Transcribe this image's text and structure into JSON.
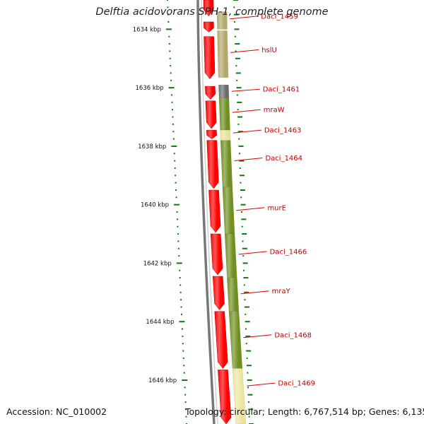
{
  "title": "Delftia acidovorans SPH-1, complete genome",
  "accession_text": "Accession: NC_010002",
  "topology_text": "Topology: circular; Length: 6,767,514 bp; Genes: 6,135",
  "colors": {
    "backbone": "#777777",
    "forward_cds": "#ff0000",
    "tick_marks": "#117711",
    "label_text": "#c00000",
    "leader_line": "#dd0000"
  },
  "chart_data": {
    "type": "linear_genome_map",
    "units": "kbp",
    "view_range_kbp": [
      1633.0,
      1647.5
    ],
    "scale_ticks": [
      {
        "position_kbp": 1634,
        "label": "1634 kbp"
      },
      {
        "position_kbp": 1636,
        "label": "1636 kbp"
      },
      {
        "position_kbp": 1638,
        "label": "1638 kbp"
      },
      {
        "position_kbp": 1640,
        "label": "1640 kbp"
      },
      {
        "position_kbp": 1642,
        "label": "1642 kbp"
      },
      {
        "position_kbp": 1644,
        "label": "1644 kbp"
      },
      {
        "position_kbp": 1646,
        "label": "1646 kbp"
      }
    ],
    "forward_cds": [
      {
        "start_kbp": 1633.0,
        "end_kbp": 1633.55
      },
      {
        "start_kbp": 1633.75,
        "end_kbp": 1634.1
      },
      {
        "start_kbp": 1634.25,
        "end_kbp": 1635.7
      },
      {
        "start_kbp": 1635.95,
        "end_kbp": 1636.4
      },
      {
        "start_kbp": 1636.45,
        "end_kbp": 1637.4
      },
      {
        "start_kbp": 1637.45,
        "end_kbp": 1637.75
      },
      {
        "start_kbp": 1637.8,
        "end_kbp": 1639.45
      },
      {
        "start_kbp": 1639.5,
        "end_kbp": 1640.95
      },
      {
        "start_kbp": 1641.0,
        "end_kbp": 1642.4
      },
      {
        "start_kbp": 1642.45,
        "end_kbp": 1643.6
      },
      {
        "start_kbp": 1643.65,
        "end_kbp": 1645.6
      },
      {
        "start_kbp": 1645.65,
        "end_kbp": 1647.5
      }
    ],
    "genes": [
      {
        "name": "Daci_1459",
        "start_kbp": 1633.4,
        "end_kbp": 1634.0,
        "color": "#b5a86a",
        "label_y_kbp": 1633.55
      },
      {
        "name": "hslU",
        "start_kbp": 1634.05,
        "end_kbp": 1635.65,
        "color": "#b5a86a",
        "label_y_kbp": 1634.7
      },
      {
        "name": "Daci_1461",
        "start_kbp": 1635.9,
        "end_kbp": 1636.35,
        "color": "#6c6c6c",
        "label_y_kbp": 1636.05
      },
      {
        "name": "mraW",
        "start_kbp": 1636.35,
        "end_kbp": 1637.45,
        "color": "#6f8f1f",
        "label_y_kbp": 1636.75
      },
      {
        "name": "Daci_1463",
        "start_kbp": 1637.45,
        "end_kbp": 1637.8,
        "color": "#e8e39a",
        "label_y_kbp": 1637.45
      },
      {
        "name": "Daci_1464",
        "start_kbp": 1637.8,
        "end_kbp": 1639.4,
        "color": "#6f8f1f",
        "label_y_kbp": 1638.4
      },
      {
        "name": "murE",
        "start_kbp": 1639.4,
        "end_kbp": 1641.0,
        "color": "#6f8f1f",
        "label_y_kbp": 1640.1
      },
      {
        "name": "Daci_1466",
        "start_kbp": 1641.0,
        "end_kbp": 1642.5,
        "color": "#6f8f1f",
        "label_y_kbp": 1641.6
      },
      {
        "name": "mraY",
        "start_kbp": 1642.5,
        "end_kbp": 1643.65,
        "color": "#6f8f1f",
        "label_y_kbp": 1642.95
      },
      {
        "name": "Daci_1468",
        "start_kbp": 1643.65,
        "end_kbp": 1645.6,
        "color": "#6f8f1f",
        "label_y_kbp": 1644.45
      },
      {
        "name": "Daci_1469",
        "start_kbp": 1645.6,
        "end_kbp": 1647.5,
        "color": "#ece49e",
        "label_y_kbp": 1646.1
      }
    ]
  }
}
